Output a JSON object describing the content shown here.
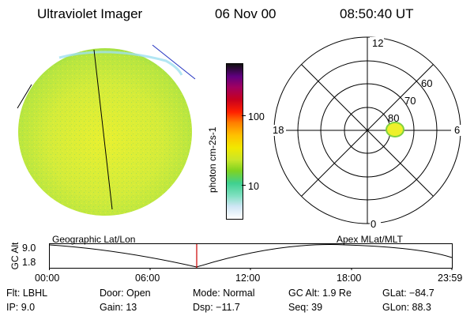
{
  "header": {
    "instrument": "Ultraviolet Imager",
    "date": "06 Nov 00",
    "time": "08:50:40 UT"
  },
  "colorbar": {
    "unit_label": "photon cm-2s-1",
    "ticks": [
      "100",
      "10"
    ],
    "colors": [
      "#ffffff",
      "#cfe6f5",
      "#7fe0c0",
      "#3fd090",
      "#7ed321",
      "#c8e62a",
      "#f2e800",
      "#ffc000",
      "#ff8000",
      "#ff2000",
      "#c8001e",
      "#a00060",
      "#600080",
      "#101010"
    ]
  },
  "polar": {
    "mlt_labels": [
      "12",
      "18",
      "6",
      "0"
    ],
    "lat_labels": [
      "60",
      "70",
      "80"
    ]
  },
  "timeline": {
    "y_axis_label": "GC Alt",
    "y_ticks": [
      "9.0",
      "1.8"
    ],
    "left_label": "Geographic Lat/Lon",
    "right_label": "Apex MLat/MLT",
    "x_ticks": [
      "00:00",
      "06:00",
      "12:00",
      "18:00",
      "23:59"
    ],
    "marker_color": "#cc0000"
  },
  "status": {
    "flt": "Flt: LBHL",
    "ip": "IP:  9.0",
    "door": "Door: Open",
    "gain": "Gain: 13",
    "mode": "Mode: Normal",
    "dsp": "Dsp:  −11.7",
    "gc_alt": "GC Alt: 1.9 Re",
    "seq": "Seq: 39",
    "glat": "GLat: −84.7",
    "glon": "GLon: 88.3"
  }
}
